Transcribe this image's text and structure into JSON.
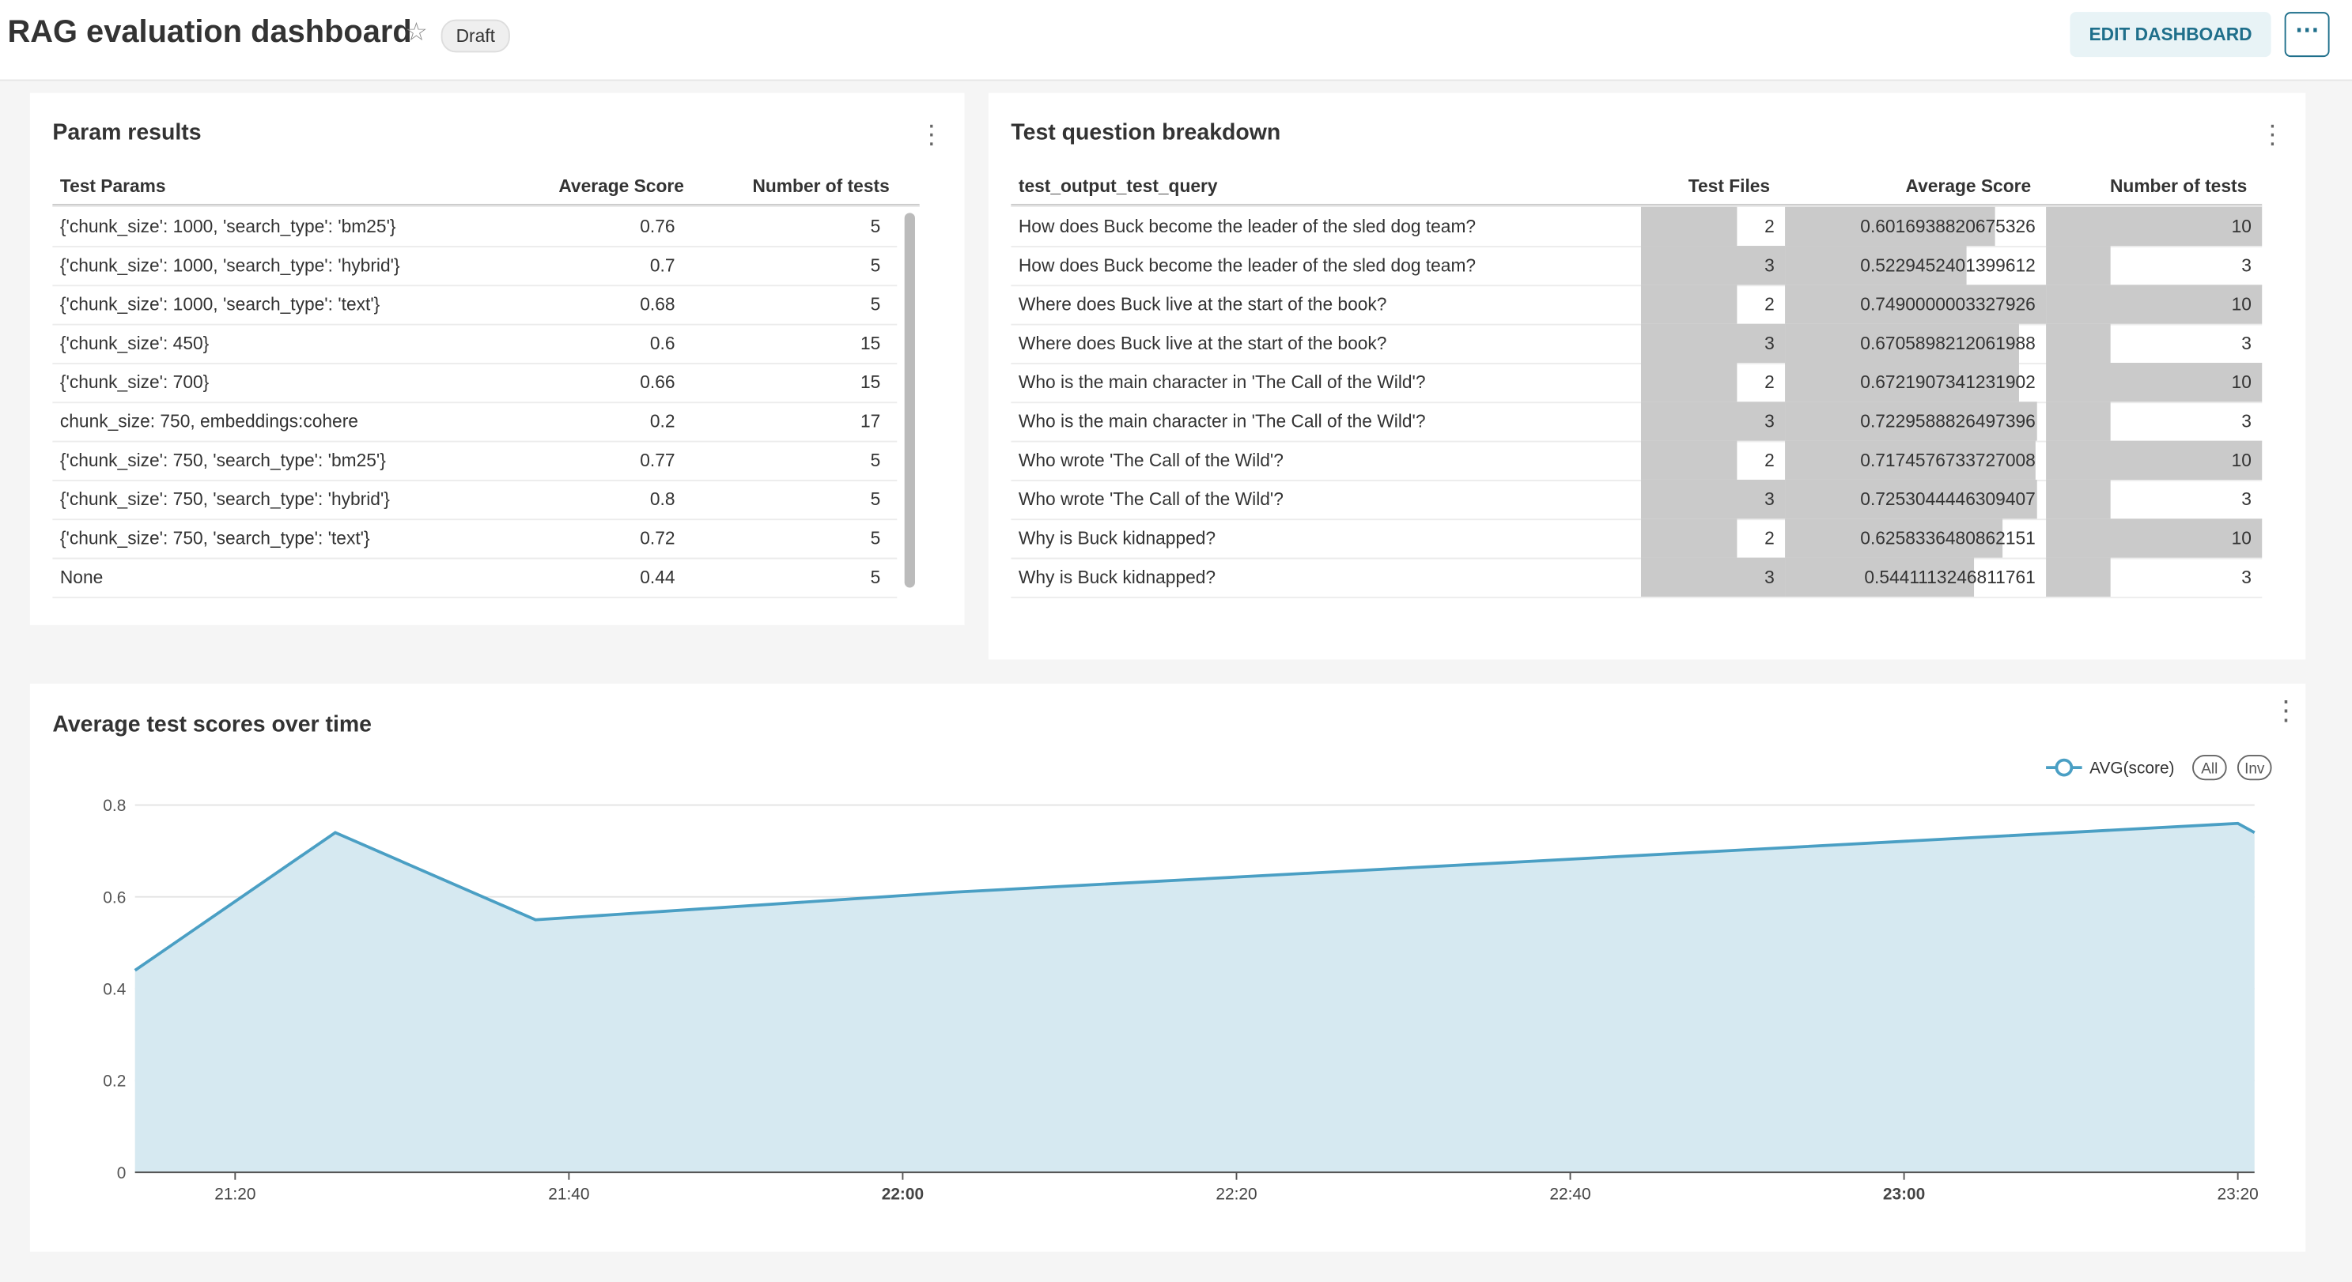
{
  "header": {
    "title": "RAG evaluation dashboard",
    "badge": "Draft",
    "edit_button": "EDIT DASHBOARD"
  },
  "param_results": {
    "title": "Param results",
    "columns": [
      "Test Params",
      "Average Score",
      "Number of tests"
    ],
    "rows": [
      [
        "{'chunk_size': 1000, 'search_type': 'bm25'}",
        0.76,
        5
      ],
      [
        "{'chunk_size': 1000, 'search_type': 'hybrid'}",
        0.7,
        5
      ],
      [
        "{'chunk_size': 1000, 'search_type': 'text'}",
        0.68,
        5
      ],
      [
        "{'chunk_size': 450}",
        0.6,
        15
      ],
      [
        "{'chunk_size': 700}",
        0.66,
        15
      ],
      [
        "chunk_size: 750, embeddings:cohere",
        0.2,
        17
      ],
      [
        "{'chunk_size': 750, 'search_type': 'bm25'}",
        0.77,
        5
      ],
      [
        "{'chunk_size': 750, 'search_type': 'hybrid'}",
        0.8,
        5
      ],
      [
        "{'chunk_size': 750, 'search_type': 'text'}",
        0.72,
        5
      ],
      [
        "None",
        0.44,
        5
      ]
    ]
  },
  "question_breakdown": {
    "title": "Test question breakdown",
    "columns": [
      "test_output_test_query",
      "Test Files",
      "Average Score",
      "Number of tests"
    ],
    "rows": [
      [
        "How does Buck become the leader of the sled dog team?",
        2,
        0.6016938820675326,
        10
      ],
      [
        "How does Buck become the leader of the sled dog team?",
        3,
        0.5229452401399612,
        3
      ],
      [
        "Where does Buck live at the start of the book?",
        2,
        0.7490000003327926,
        10
      ],
      [
        "Where does Buck live at the start of the book?",
        3,
        0.6705898212061988,
        3
      ],
      [
        "Who is the main character in 'The Call of the Wild'?",
        2,
        0.6721907341231902,
        10
      ],
      [
        "Who is the main character in 'The Call of the Wild'?",
        3,
        0.7229588826497396,
        3
      ],
      [
        "Who wrote 'The Call of the Wild'?",
        2,
        0.7174576733727008,
        10
      ],
      [
        "Who wrote 'The Call of the Wild'?",
        3,
        0.7253044446309407,
        3
      ],
      [
        "Why is Buck kidnapped?",
        2,
        0.6258336480862151,
        10
      ],
      [
        "Why is Buck kidnapped?",
        3,
        0.5441113246811761,
        3
      ]
    ]
  },
  "chart_data": {
    "type": "area",
    "title": "Average test scores over time",
    "x": [
      "21:14",
      "21:26",
      "21:38",
      "22:03",
      "23:20",
      "23:21"
    ],
    "series": [
      {
        "name": "AVG(score)",
        "color": "#4a9fc4",
        "values": [
          0.44,
          0.74,
          0.55,
          0.61,
          0.76,
          0.74
        ]
      }
    ],
    "legend_buttons": [
      "All",
      "Inv"
    ],
    "xlim": [
      "21:14",
      "23:21"
    ],
    "xticks": [
      "21:20",
      "21:40",
      "22:00",
      "22:20",
      "22:40",
      "23:00",
      "23:20"
    ],
    "ylim": [
      0,
      0.8
    ],
    "yticks": [
      0,
      0.2,
      0.4,
      0.6,
      0.8
    ],
    "grid": true
  }
}
